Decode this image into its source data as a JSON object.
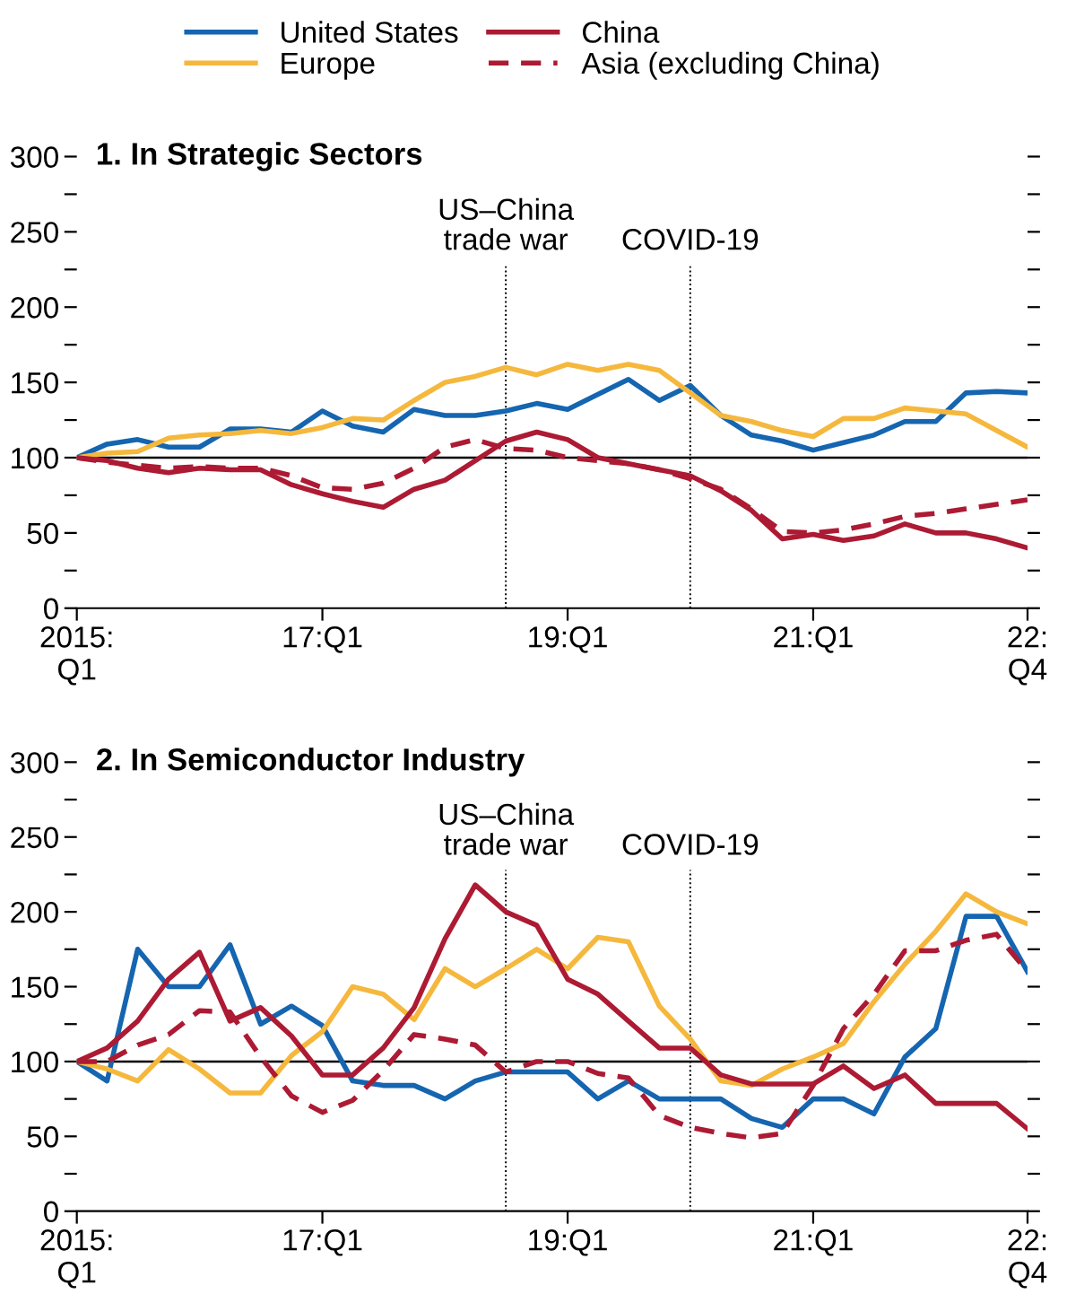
{
  "chart_data": [
    {
      "type": "line",
      "title": "1. In Strategic Sectors",
      "legend": "top",
      "grid": false,
      "x": [
        "2015-01",
        "2015-04",
        "2015-07",
        "2015-10",
        "2016-01",
        "2016-04",
        "2016-07",
        "2016-10",
        "2017-01",
        "2017-04",
        "2017-07",
        "2017-10",
        "2018-01",
        "2018-04",
        "2018-07",
        "2018-10",
        "2019-01",
        "2019-04",
        "2019-07",
        "2019-10",
        "2020-01",
        "2020-04",
        "2020-07",
        "2020-10",
        "2021-01",
        "2021-04",
        "2021-07",
        "2021-10",
        "2022-01",
        "2022-04",
        "2022-07",
        "2022-10"
      ],
      "xlim": [
        "2015-01",
        "2022-10"
      ],
      "xticks": [
        {
          "value": "2015-01",
          "label": "2015:\nQ1"
        },
        {
          "value": "2017-01",
          "label": "17:Q1"
        },
        {
          "value": "2019-01",
          "label": "19:Q1"
        },
        {
          "value": "2021-01",
          "label": "21:Q1"
        },
        {
          "value": "2022-10",
          "label": "22:\nQ4"
        }
      ],
      "ylim": [
        0,
        300
      ],
      "yticks": [
        0,
        {
          "value": 25,
          "label": null
        },
        50,
        {
          "value": 75,
          "label": null
        },
        100,
        {
          "value": 125,
          "label": null
        },
        150,
        {
          "value": 175,
          "label": null
        },
        200,
        {
          "value": 225,
          "label": null
        },
        250,
        {
          "value": 275,
          "label": null
        },
        300
      ],
      "ref_lines": [
        {
          "axis": "y",
          "value": 100,
          "label": null,
          "color": "#000000",
          "line_style": "solid"
        },
        {
          "axis": "x",
          "value": "2018-07",
          "label": "US–China\ntrade war",
          "color": "#000000",
          "line_style": "dotted"
        },
        {
          "axis": "x",
          "value": "2020-01",
          "label": "COVID-19",
          "color": "#000000",
          "line_style": "dotted"
        }
      ],
      "series": [
        {
          "name": "United States",
          "color": "#1565b0",
          "line_style": "solid",
          "values": [
            100,
            109,
            112,
            107,
            107,
            119,
            119,
            117,
            131,
            121,
            117,
            132,
            128,
            128,
            131,
            136,
            132,
            142,
            152,
            138,
            148,
            128,
            115,
            111,
            105,
            110,
            115,
            124,
            124,
            143,
            144,
            143
          ]
        },
        {
          "name": "Europe",
          "color": "#f5b83d",
          "line_style": "solid",
          "values": [
            100,
            103,
            104,
            113,
            115,
            116,
            118,
            116,
            120,
            126,
            125,
            138,
            150,
            154,
            160,
            155,
            162,
            158,
            162,
            158,
            143,
            128,
            124,
            118,
            114,
            126,
            126,
            133,
            131,
            129,
            118,
            107
          ]
        },
        {
          "name": "China",
          "color": "#ad1a33",
          "line_style": "solid",
          "values": [
            100,
            98,
            93,
            90,
            93,
            92,
            92,
            82,
            76,
            71,
            67,
            79,
            85,
            98,
            111,
            117,
            112,
            100,
            96,
            92,
            88,
            78,
            65,
            46,
            49,
            45,
            48,
            56,
            50,
            50,
            46,
            40
          ]
        },
        {
          "name": "Asia (excluding China)",
          "color": "#ad1a33",
          "line_style": "dashed",
          "values": [
            100,
            97,
            95,
            93,
            94,
            93,
            93,
            88,
            80,
            79,
            83,
            93,
            107,
            112,
            106,
            105,
            100,
            98,
            96,
            92,
            86,
            79,
            66,
            51,
            50,
            52,
            56,
            61,
            63,
            66,
            69,
            72
          ]
        }
      ]
    },
    {
      "type": "line",
      "title": "2. In Semiconductor Industry",
      "grid": false,
      "x": [
        "2015-01",
        "2015-04",
        "2015-07",
        "2015-10",
        "2016-01",
        "2016-04",
        "2016-07",
        "2016-10",
        "2017-01",
        "2017-04",
        "2017-07",
        "2017-10",
        "2018-01",
        "2018-04",
        "2018-07",
        "2018-10",
        "2019-01",
        "2019-04",
        "2019-07",
        "2019-10",
        "2020-01",
        "2020-04",
        "2020-07",
        "2020-10",
        "2021-01",
        "2021-04",
        "2021-07",
        "2021-10",
        "2022-01",
        "2022-04",
        "2022-07",
        "2022-10"
      ],
      "xlim": [
        "2015-01",
        "2022-10"
      ],
      "xticks": [
        {
          "value": "2015-01",
          "label": "2015:\nQ1"
        },
        {
          "value": "2017-01",
          "label": "17:Q1"
        },
        {
          "value": "2019-01",
          "label": "19:Q1"
        },
        {
          "value": "2021-01",
          "label": "21:Q1"
        },
        {
          "value": "2022-10",
          "label": "22:\nQ4"
        }
      ],
      "ylim": [
        0,
        300
      ],
      "yticks": [
        0,
        {
          "value": 25,
          "label": null
        },
        50,
        {
          "value": 75,
          "label": null
        },
        100,
        {
          "value": 125,
          "label": null
        },
        150,
        {
          "value": 175,
          "label": null
        },
        200,
        {
          "value": 225,
          "label": null
        },
        250,
        {
          "value": 275,
          "label": null
        },
        300
      ],
      "ref_lines": [
        {
          "axis": "y",
          "value": 100,
          "label": null,
          "color": "#000000",
          "line_style": "solid"
        },
        {
          "axis": "x",
          "value": "2018-07",
          "label": "US–China\ntrade war",
          "color": "#000000",
          "line_style": "dotted"
        },
        {
          "axis": "x",
          "value": "2020-01",
          "label": "COVID-19",
          "color": "#000000",
          "line_style": "dotted"
        }
      ],
      "series": [
        {
          "color": "#1565b0",
          "line_style": "solid",
          "values": [
            100,
            87,
            175,
            150,
            150,
            178,
            125,
            137,
            124,
            87,
            84,
            84,
            75,
            87,
            93,
            93,
            93,
            75,
            87,
            75,
            75,
            75,
            62,
            56,
            75,
            75,
            65,
            103,
            122,
            197,
            197,
            160
          ]
        },
        {
          "color": "#f5b83d",
          "line_style": "solid",
          "values": [
            100,
            95,
            87,
            108,
            95,
            79,
            79,
            104,
            120,
            150,
            145,
            128,
            162,
            150,
            162,
            175,
            162,
            183,
            180,
            137,
            115,
            87,
            84,
            95,
            103,
            112,
            140,
            165,
            187,
            212,
            200,
            192
          ]
        },
        {
          "color": "#ad1a33",
          "line_style": "solid",
          "values": [
            100,
            109,
            127,
            155,
            173,
            127,
            136,
            117,
            91,
            91,
            109,
            136,
            182,
            218,
            200,
            191,
            155,
            145,
            127,
            109,
            109,
            91,
            85,
            85,
            85,
            97,
            82,
            91,
            72,
            72,
            72,
            55
          ]
        },
        {
          "color": "#ad1a33",
          "line_style": "dashed",
          "values": [
            100,
            100,
            111,
            118,
            134,
            133,
            103,
            77,
            66,
            74,
            94,
            118,
            115,
            111,
            93,
            100,
            100,
            92,
            89,
            64,
            56,
            52,
            49,
            52,
            84,
            122,
            145,
            174,
            174,
            181,
            185,
            160
          ]
        }
      ]
    }
  ]
}
